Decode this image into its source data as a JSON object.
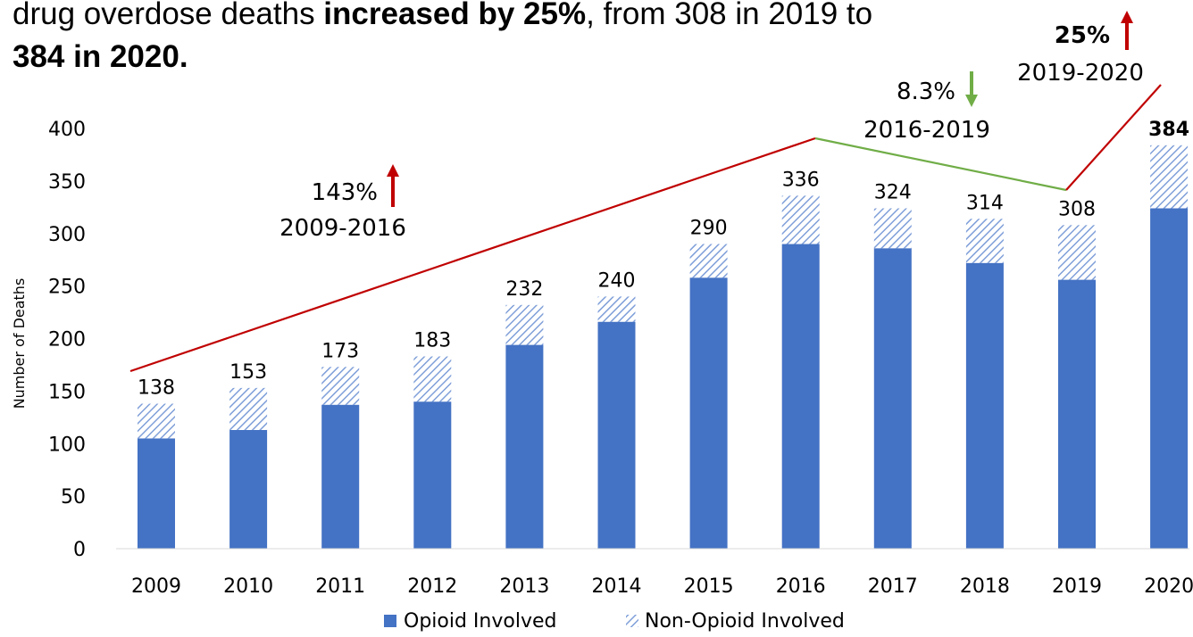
{
  "headline": {
    "part1": "drug overdose deaths ",
    "bold1": "increased by 25%",
    "part2": ", from 308 in 2019 to",
    "bold2": "384 in 2020",
    "part3": "."
  },
  "colors": {
    "opioid": "#4472c4",
    "non_opioid_hatch": "#7f9fd9",
    "increase_line": "#c00000",
    "decrease_line": "#70ad47"
  },
  "chart_data": {
    "type": "bar",
    "stacked": true,
    "categories": [
      "2009",
      "2010",
      "2011",
      "2012",
      "2013",
      "2014",
      "2015",
      "2016",
      "2017",
      "2018",
      "2019",
      "2020"
    ],
    "series": [
      {
        "name": "Opioid Involved",
        "values": [
          105,
          113,
          137,
          140,
          194,
          216,
          258,
          290,
          286,
          272,
          256,
          324
        ]
      },
      {
        "name": "Non-Opioid Involved",
        "values": [
          33,
          40,
          36,
          43,
          38,
          24,
          32,
          46,
          38,
          42,
          52,
          60
        ]
      }
    ],
    "totals": [
      "138",
      "153",
      "173",
      "183",
      "232",
      "240",
      "290",
      "336",
      "324",
      "314",
      "308",
      "384"
    ],
    "ylabel": "Number of Deaths",
    "ylim": [
      0,
      400
    ],
    "yticks": [
      "0",
      "50",
      "100",
      "150",
      "200",
      "250",
      "300",
      "350",
      "400"
    ],
    "legend_position": "bottom",
    "grid": false,
    "annotations": [
      {
        "pct": "143%",
        "period": "2009-2016",
        "direction": "up"
      },
      {
        "pct": "8.3%",
        "period": "2016-2019",
        "direction": "down"
      },
      {
        "pct": "25%",
        "period": "2019-2020",
        "direction": "up"
      }
    ],
    "trend_lines": [
      {
        "from": "2009",
        "to": "2016",
        "direction": "up"
      },
      {
        "from": "2016",
        "to": "2019",
        "direction": "down"
      },
      {
        "from": "2019",
        "to": "2020",
        "direction": "up"
      }
    ]
  }
}
